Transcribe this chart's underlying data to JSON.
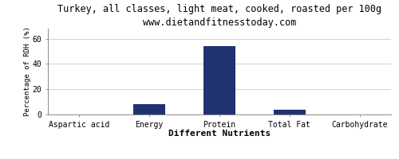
{
  "title": "Turkey, all classes, light meat, cooked, roasted per 100g",
  "subtitle": "www.dietandfitnesstoday.com",
  "xlabel": "Different Nutrients",
  "ylabel": "Percentage of RDH (%)",
  "categories": [
    "Aspartic acid",
    "Energy",
    "Protein",
    "Total Fat",
    "Carbohydrate"
  ],
  "values": [
    0.3,
    8.0,
    54.0,
    4.0,
    0.2
  ],
  "bar_color": "#1f3272",
  "ylim": [
    0,
    68
  ],
  "yticks": [
    0,
    20,
    40,
    60
  ],
  "bg_color": "#ffffff",
  "plot_bg_color": "#ffffff",
  "title_fontsize": 8.5,
  "subtitle_fontsize": 7.5,
  "xlabel_fontsize": 8,
  "ylabel_fontsize": 6.5,
  "tick_fontsize": 7,
  "bar_width": 0.45
}
